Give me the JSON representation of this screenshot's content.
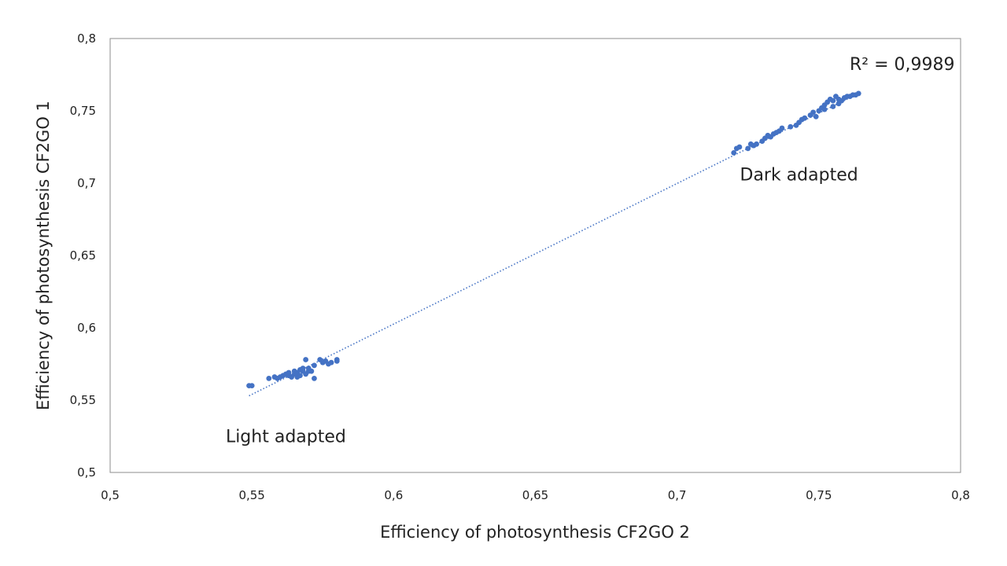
{
  "chart_data": {
    "type": "scatter",
    "title": "",
    "xlabel": "Efficiency of photosynthesis CF2GO 2",
    "ylabel": "Efficiency of photosynthesis CF2GO 1",
    "xlim": [
      0.5,
      0.8
    ],
    "ylim": [
      0.5,
      0.8
    ],
    "xticks": [
      0.5,
      0.55,
      0.6,
      0.65,
      0.7,
      0.75,
      0.8
    ],
    "yticks": [
      0.5,
      0.55,
      0.6,
      0.65,
      0.7,
      0.75,
      0.8
    ],
    "xtick_labels": [
      "0,5",
      "0,55",
      "0,6",
      "0,65",
      "0,7",
      "0,75",
      "0,8"
    ],
    "ytick_labels": [
      "0,5",
      "0,55",
      "0,6",
      "0,65",
      "0,7",
      "0,75",
      "0,8"
    ],
    "grid": false,
    "series": [
      {
        "name": "Measurements",
        "color": "#4472c4",
        "points": [
          [
            0.549,
            0.56
          ],
          [
            0.55,
            0.56
          ],
          [
            0.556,
            0.565
          ],
          [
            0.558,
            0.566
          ],
          [
            0.559,
            0.565
          ],
          [
            0.56,
            0.566
          ],
          [
            0.561,
            0.567
          ],
          [
            0.562,
            0.568
          ],
          [
            0.563,
            0.567
          ],
          [
            0.563,
            0.569
          ],
          [
            0.564,
            0.566
          ],
          [
            0.565,
            0.568
          ],
          [
            0.565,
            0.57
          ],
          [
            0.566,
            0.566
          ],
          [
            0.566,
            0.569
          ],
          [
            0.567,
            0.571
          ],
          [
            0.567,
            0.567
          ],
          [
            0.568,
            0.57
          ],
          [
            0.568,
            0.572
          ],
          [
            0.569,
            0.568
          ],
          [
            0.569,
            0.578
          ],
          [
            0.57,
            0.57
          ],
          [
            0.57,
            0.572
          ],
          [
            0.571,
            0.57
          ],
          [
            0.572,
            0.574
          ],
          [
            0.572,
            0.565
          ],
          [
            0.574,
            0.578
          ],
          [
            0.575,
            0.576
          ],
          [
            0.576,
            0.577
          ],
          [
            0.577,
            0.575
          ],
          [
            0.578,
            0.576
          ],
          [
            0.58,
            0.577
          ],
          [
            0.58,
            0.578
          ],
          [
            0.72,
            0.721
          ],
          [
            0.721,
            0.724
          ],
          [
            0.722,
            0.725
          ],
          [
            0.725,
            0.724
          ],
          [
            0.726,
            0.727
          ],
          [
            0.727,
            0.726
          ],
          [
            0.728,
            0.727
          ],
          [
            0.73,
            0.729
          ],
          [
            0.731,
            0.731
          ],
          [
            0.732,
            0.733
          ],
          [
            0.733,
            0.732
          ],
          [
            0.734,
            0.734
          ],
          [
            0.735,
            0.735
          ],
          [
            0.736,
            0.736
          ],
          [
            0.737,
            0.738
          ],
          [
            0.74,
            0.739
          ],
          [
            0.742,
            0.74
          ],
          [
            0.743,
            0.742
          ],
          [
            0.744,
            0.744
          ],
          [
            0.745,
            0.745
          ],
          [
            0.747,
            0.747
          ],
          [
            0.748,
            0.749
          ],
          [
            0.749,
            0.746
          ],
          [
            0.75,
            0.75
          ],
          [
            0.751,
            0.752
          ],
          [
            0.752,
            0.751
          ],
          [
            0.752,
            0.754
          ],
          [
            0.753,
            0.756
          ],
          [
            0.754,
            0.758
          ],
          [
            0.755,
            0.753
          ],
          [
            0.755,
            0.757
          ],
          [
            0.756,
            0.76
          ],
          [
            0.757,
            0.755
          ],
          [
            0.757,
            0.758
          ],
          [
            0.758,
            0.757
          ],
          [
            0.759,
            0.759
          ],
          [
            0.76,
            0.76
          ],
          [
            0.761,
            0.76
          ],
          [
            0.762,
            0.761
          ],
          [
            0.763,
            0.761
          ],
          [
            0.764,
            0.762
          ]
        ]
      }
    ],
    "trendline": {
      "type": "linear",
      "style": "dotted",
      "color": "#4472c4",
      "from": [
        0.549,
        0.553
      ],
      "to": [
        0.764,
        0.762
      ],
      "r_squared_label": "R² = 0,9989"
    },
    "annotations": [
      {
        "text": "Light adapted",
        "x": 0.562,
        "y": 0.521
      },
      {
        "text": "Dark adapted",
        "x": 0.743,
        "y": 0.702
      }
    ]
  }
}
